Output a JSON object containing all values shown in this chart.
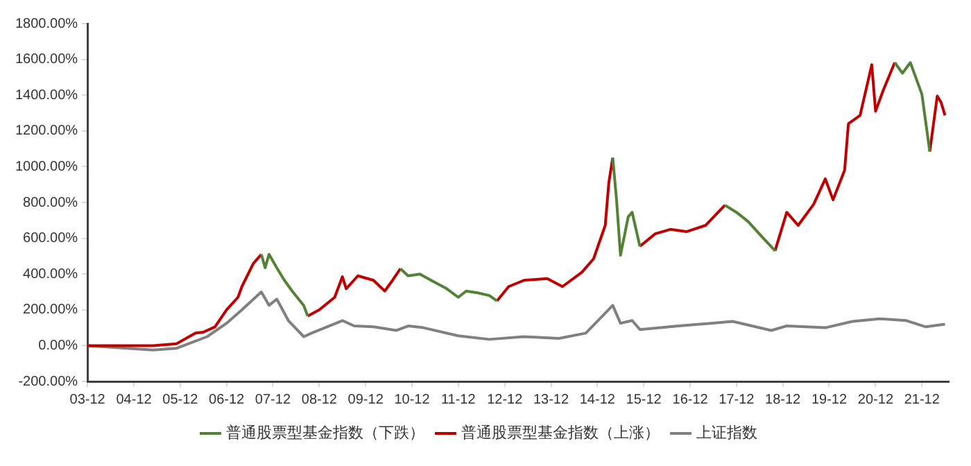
{
  "chart_data": {
    "type": "line",
    "x": [
      "2003-12",
      "2004-06",
      "2005-05",
      "2005-11",
      "2006-04",
      "2006-06",
      "2006-09",
      "2006-12",
      "2007-03",
      "2007-04",
      "2007-07",
      "2007-09",
      "2007-10",
      "2007-11",
      "2008-01",
      "2008-03",
      "2008-05",
      "2008-08",
      "2008-09",
      "2008-12",
      "2009-04",
      "2009-06",
      "2009-07",
      "2009-10",
      "2010-02",
      "2010-05",
      "2010-07",
      "2010-09",
      "2010-11",
      "2011-02",
      "2011-05",
      "2011-09",
      "2011-12",
      "2012-02",
      "2012-05",
      "2012-08",
      "2012-10",
      "2013-01",
      "2013-05",
      "2013-11",
      "2014-03",
      "2014-08",
      "2014-11",
      "2015-02",
      "2015-03",
      "2015-04",
      "2015-05",
      "2015-06",
      "2015-08",
      "2015-09",
      "2015-11",
      "2016-03",
      "2016-07",
      "2016-11",
      "2017-04",
      "2017-09",
      "2017-12",
      "2018-03",
      "2018-07",
      "2018-10",
      "2019-01",
      "2019-04",
      "2019-08",
      "2019-11",
      "2020-01",
      "2020-04",
      "2020-05",
      "2020-08",
      "2020-11",
      "2020-12",
      "2021-02",
      "2021-05",
      "2021-07",
      "2021-09",
      "2021-12",
      "2022-02",
      "2022-04",
      "2022-05",
      "2022-06"
    ],
    "series": [
      {
        "name": "普通股票型基金指数（下跌）",
        "color": "#538135",
        "values": [
          null,
          null,
          null,
          null,
          null,
          null,
          null,
          null,
          null,
          null,
          null,
          510,
          435,
          510,
          435,
          365,
          305,
          223,
          165,
          null,
          null,
          null,
          null,
          null,
          null,
          null,
          null,
          430,
          390,
          400,
          365,
          318,
          270,
          305,
          295,
          280,
          250,
          null,
          null,
          null,
          null,
          null,
          null,
          null,
          null,
          1050,
          815,
          505,
          720,
          745,
          555,
          null,
          null,
          null,
          null,
          785,
          745,
          695,
          600,
          530,
          null,
          null,
          null,
          null,
          null,
          null,
          null,
          null,
          null,
          null,
          null,
          1582,
          1523,
          1582,
          1405,
          1085,
          null,
          null,
          null
        ]
      },
      {
        "name": "普通股票型基金指数（上涨）",
        "color": "#c00000",
        "values": [
          0,
          0,
          0,
          10,
          70,
          75,
          105,
          200,
          270,
          330,
          460,
          510,
          null,
          null,
          null,
          null,
          null,
          null,
          165,
          200,
          270,
          385,
          318,
          390,
          365,
          305,
          365,
          430,
          null,
          null,
          null,
          null,
          null,
          null,
          null,
          null,
          250,
          330,
          365,
          375,
          330,
          410,
          485,
          672,
          910,
          1050,
          null,
          null,
          null,
          null,
          555,
          625,
          650,
          637,
          672,
          785,
          null,
          null,
          null,
          530,
          745,
          672,
          790,
          932,
          815,
          980,
          1240,
          1287,
          1570,
          1310,
          1430,
          1582,
          null,
          null,
          null,
          1085,
          1395,
          1360,
          1287
        ]
      },
      {
        "name": "上证指数",
        "color": "#808080",
        "x": [
          "2003-12",
          "2005-05",
          "2005-11",
          "2006-07",
          "2006-12",
          "2007-04",
          "2007-09",
          "2007-11",
          "2008-01",
          "2008-04",
          "2008-08",
          "2008-10",
          "2009-06",
          "2009-09",
          "2010-02",
          "2010-08",
          "2010-11",
          "2011-03",
          "2011-12",
          "2012-08",
          "2013-05",
          "2014-02",
          "2014-09",
          "2015-04",
          "2015-06",
          "2015-09",
          "2015-11",
          "2016-09",
          "2017-11",
          "2018-09",
          "2019-01",
          "2019-11",
          "2020-06",
          "2021-01",
          "2021-08",
          "2022-01",
          "2022-06"
        ],
        "values": [
          0,
          -25,
          -15,
          50,
          125,
          200,
          300,
          225,
          260,
          140,
          50,
          70,
          140,
          110,
          105,
          85,
          110,
          100,
          55,
          35,
          50,
          40,
          70,
          225,
          125,
          140,
          90,
          110,
          135,
          85,
          110,
          100,
          135,
          150,
          140,
          105,
          120
        ]
      }
    ],
    "xlim": [
      "2003-12",
      "2022-07"
    ],
    "xticks": [
      {
        "value": "2003-12",
        "label": "03-12"
      },
      {
        "value": "2004-12",
        "label": "04-12"
      },
      {
        "value": "2005-12",
        "label": "05-12"
      },
      {
        "value": "2006-12",
        "label": "06-12"
      },
      {
        "value": "2007-12",
        "label": "07-12"
      },
      {
        "value": "2008-12",
        "label": "08-12"
      },
      {
        "value": "2009-12",
        "label": "09-12"
      },
      {
        "value": "2010-12",
        "label": "10-12"
      },
      {
        "value": "2011-12",
        "label": "11-12"
      },
      {
        "value": "2012-12",
        "label": "12-12"
      },
      {
        "value": "2013-12",
        "label": "13-12"
      },
      {
        "value": "2014-12",
        "label": "14-12"
      },
      {
        "value": "2015-12",
        "label": "15-12"
      },
      {
        "value": "2016-12",
        "label": "16-12"
      },
      {
        "value": "2017-12",
        "label": "17-12"
      },
      {
        "value": "2018-12",
        "label": "18-12"
      },
      {
        "value": "2019-12",
        "label": "19-12"
      },
      {
        "value": "2020-12",
        "label": "20-12"
      },
      {
        "value": "2021-12",
        "label": "21-12"
      }
    ],
    "ylim": [
      -200,
      1800
    ],
    "yticks": [
      {
        "value": -200,
        "label": "-200.00%"
      },
      {
        "value": 0,
        "label": "0.00%"
      },
      {
        "value": 200,
        "label": "200.00%"
      },
      {
        "value": 400,
        "label": "400.00%"
      },
      {
        "value": 600,
        "label": "600.00%"
      },
      {
        "value": 800,
        "label": "800.00%"
      },
      {
        "value": 1000,
        "label": "1000.00%"
      },
      {
        "value": 1200,
        "label": "1200.00%"
      },
      {
        "value": 1400,
        "label": "1400.00%"
      },
      {
        "value": 1600,
        "label": "1600.00%"
      },
      {
        "value": 1800,
        "label": "1800.00%"
      }
    ],
    "grid": false,
    "legend": "bottom",
    "marker": "none",
    "line_style": "solid"
  }
}
